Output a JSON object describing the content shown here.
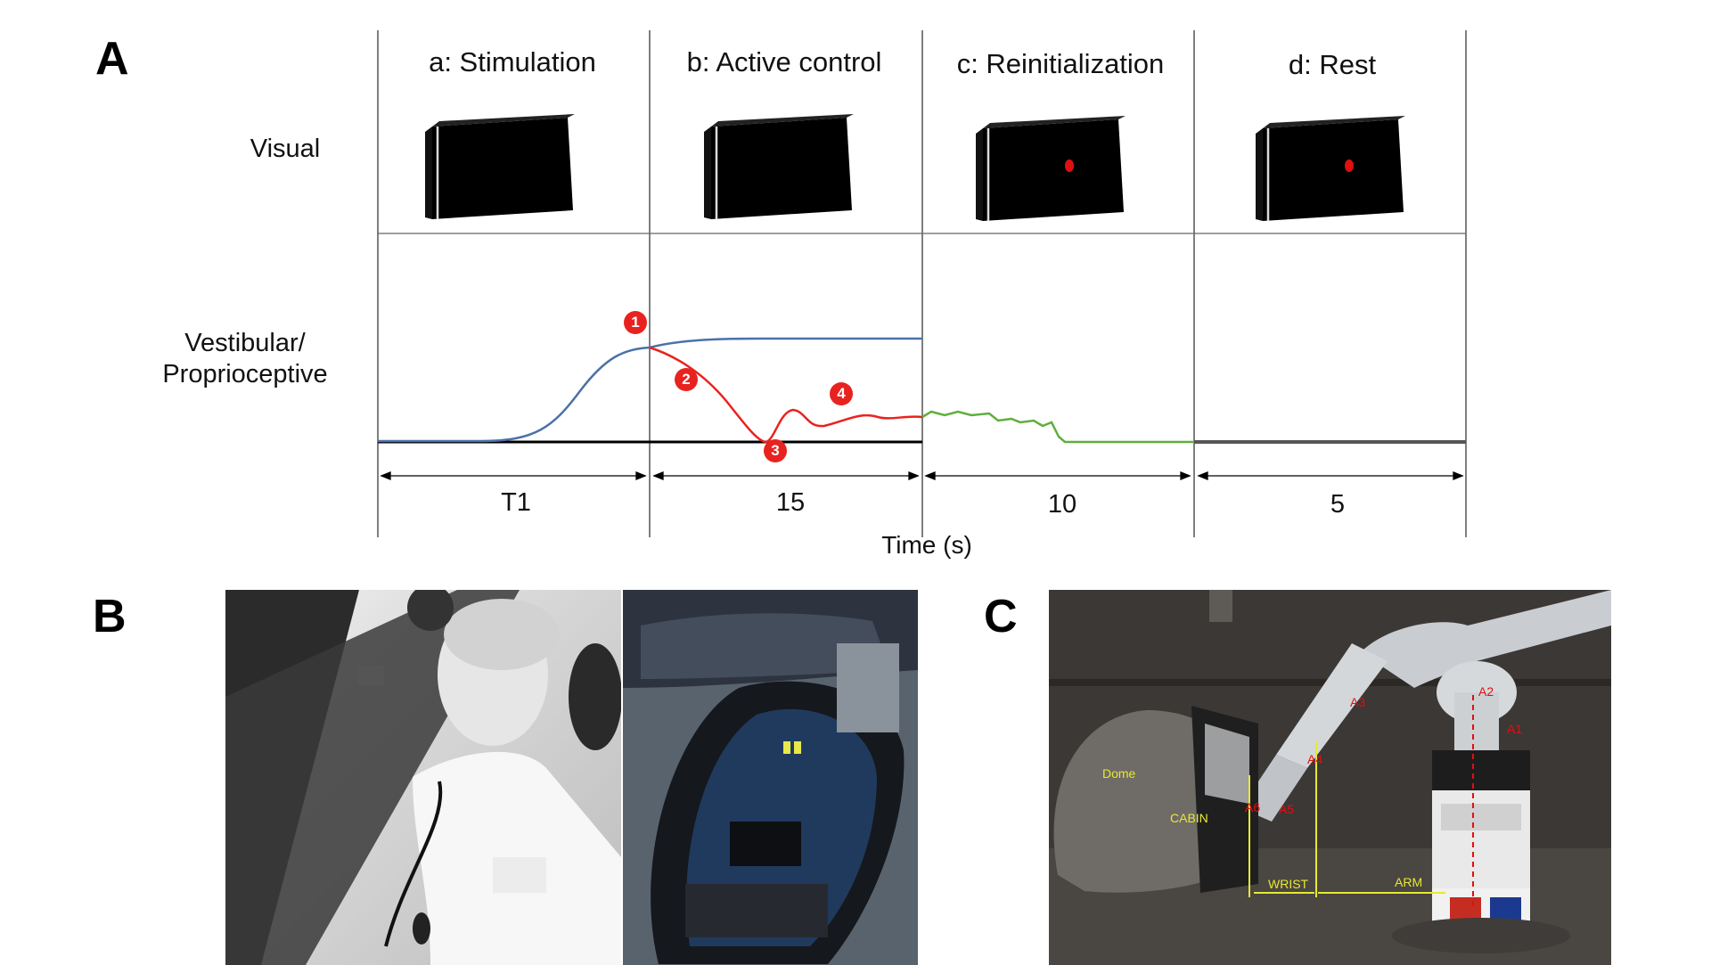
{
  "panel_a": {
    "letter": "A",
    "phases": [
      {
        "title": "a: Stimulation",
        "duration": "T1",
        "screen_dot": false
      },
      {
        "title": "b: Active control",
        "duration": "15",
        "screen_dot": false
      },
      {
        "title": "c: Reinitialization",
        "duration": "10",
        "screen_dot": true
      },
      {
        "title": "d: Rest",
        "duration": "5",
        "screen_dot": true
      }
    ],
    "row_visual": "Visual",
    "row_vestibular": "Vestibular/\nProprioceptive",
    "time_axis_label": "Time (s)",
    "markers": [
      "1",
      "2",
      "3",
      "4"
    ],
    "colors": {
      "stimulus": "#4a72a8",
      "control": "#e8231f",
      "reinit": "#5fae3c",
      "dot": "#e01010"
    }
  },
  "panel_b": {
    "letter": "B"
  },
  "panel_c": {
    "letter": "C",
    "labels": {
      "dome": "Dome",
      "cabin": "CABIN",
      "wrist": "WRIST",
      "arm": "ARM",
      "a1": "A1",
      "a2": "A2",
      "a3": "A3",
      "a4": "A4",
      "a5": "A5",
      "a6": "A6"
    }
  }
}
